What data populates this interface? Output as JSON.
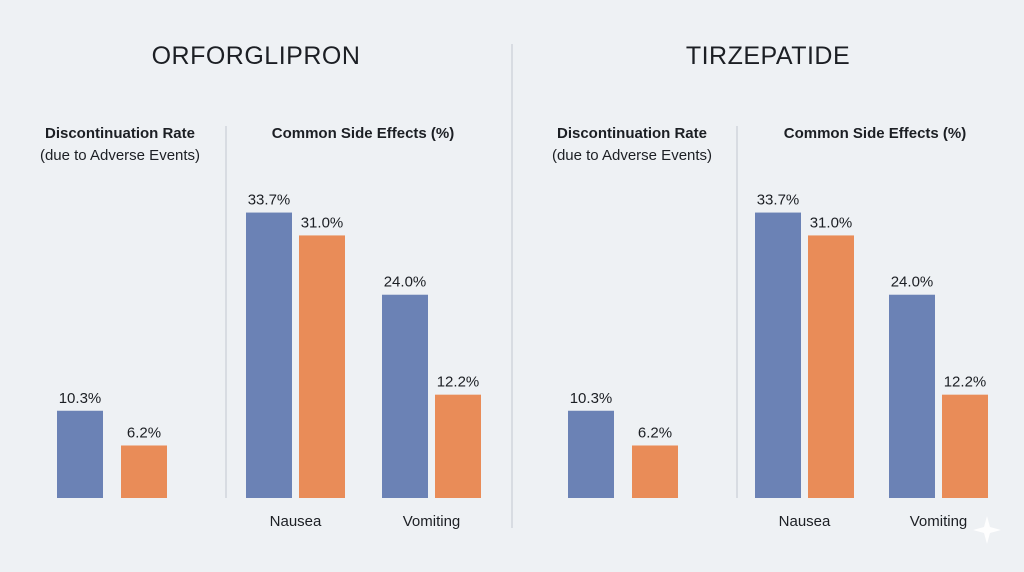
{
  "colors": {
    "series_a": "#6b82b5",
    "series_b": "#e98c58",
    "background": "#eef1f4",
    "divider": "#c9ced6",
    "baseline": "#b9bec6"
  },
  "chart_data": [
    {
      "type": "bar",
      "title": "ORFORGLIPRON",
      "subcharts": [
        {
          "title": "Discontinuation Rate",
          "subtitle": "(due to Adverse Events)",
          "categories": [
            ""
          ],
          "series": [
            {
              "values": [
                10.3
              ],
              "labels": [
                "10.3%"
              ]
            },
            {
              "values": [
                6.2
              ],
              "labels": [
                "6.2%"
              ]
            }
          ]
        },
        {
          "title": "Common Side Effects (%)",
          "subtitle": "",
          "categories": [
            "Nausea",
            "Vomiting"
          ],
          "series": [
            {
              "values": [
                33.7,
                24.0
              ],
              "labels": [
                "33.7%",
                "24.0%"
              ]
            },
            {
              "values": [
                31.0,
                12.2
              ],
              "labels": [
                "31.0%",
                "12.2%"
              ]
            }
          ]
        }
      ],
      "ylim": [
        0,
        40
      ],
      "grid": false
    },
    {
      "type": "bar",
      "title": "TIRZEPATIDE",
      "subcharts": [
        {
          "title": "Discontinuation Rate",
          "subtitle": "(due to Adverse Events)",
          "categories": [
            ""
          ],
          "series": [
            {
              "values": [
                10.3
              ],
              "labels": [
                "10.3%"
              ]
            },
            {
              "values": [
                6.2
              ],
              "labels": [
                "6.2%"
              ]
            }
          ]
        },
        {
          "title": "Common Side Effects (%)",
          "subtitle": "",
          "categories": [
            "Nausea",
            "Vomiting"
          ],
          "series": [
            {
              "values": [
                33.7,
                24.0
              ],
              "labels": [
                "33.7%",
                "24.0%"
              ]
            },
            {
              "values": [
                31.0,
                12.2
              ],
              "labels": [
                "31.0%",
                "12.2%"
              ]
            }
          ]
        }
      ],
      "ylim": [
        0,
        40
      ],
      "grid": false
    }
  ]
}
